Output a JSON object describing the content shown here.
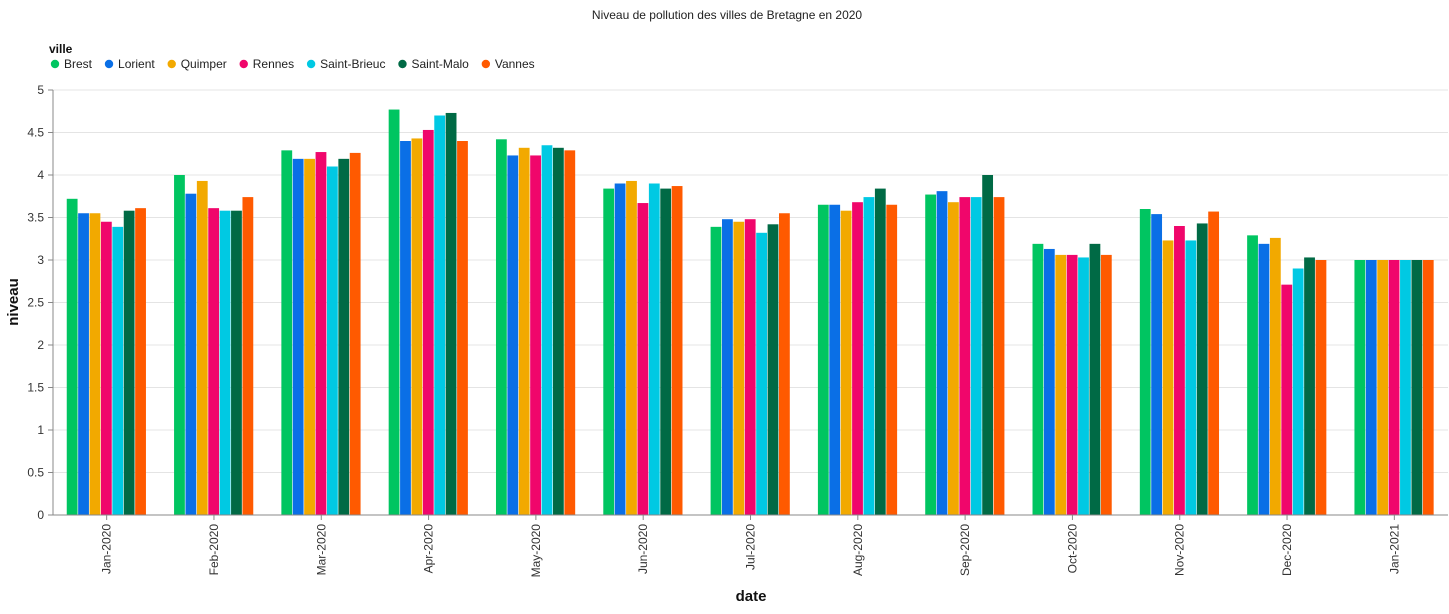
{
  "chart_data": {
    "type": "bar",
    "title": "Niveau de pollution des villes de Bretagne en 2020",
    "xlabel": "date",
    "ylabel": "niveau",
    "ylim": [
      0,
      5
    ],
    "yticks": [
      "0",
      "0.5",
      "1",
      "1.5",
      "2",
      "2.5",
      "3",
      "3.5",
      "4",
      "4.5",
      "5"
    ],
    "grid": true,
    "legend": {
      "title": "ville",
      "placement": "top-left"
    },
    "categories": [
      "Jan-2020",
      "Feb-2020",
      "Mar-2020",
      "Apr-2020",
      "May-2020",
      "Jun-2020",
      "Jul-2020",
      "Aug-2020",
      "Sep-2020",
      "Oct-2020",
      "Nov-2020",
      "Dec-2020",
      "Jan-2021"
    ],
    "series": [
      {
        "name": "Brest",
        "color": "#00c561",
        "values": [
          3.72,
          4.0,
          4.29,
          4.77,
          4.42,
          3.84,
          3.39,
          3.65,
          3.77,
          3.19,
          3.6,
          3.29,
          3.0
        ]
      },
      {
        "name": "Lorient",
        "color": "#0a6fe6",
        "values": [
          3.55,
          3.78,
          4.19,
          4.4,
          4.23,
          3.9,
          3.48,
          3.65,
          3.81,
          3.13,
          3.54,
          3.19,
          3.0
        ]
      },
      {
        "name": "Quimper",
        "color": "#f2a900",
        "values": [
          3.55,
          3.93,
          4.19,
          4.43,
          4.32,
          3.93,
          3.45,
          3.58,
          3.68,
          3.06,
          3.23,
          3.26,
          3.0
        ]
      },
      {
        "name": "Rennes",
        "color": "#f0066b",
        "values": [
          3.45,
          3.61,
          4.27,
          4.53,
          4.23,
          3.67,
          3.48,
          3.68,
          3.74,
          3.06,
          3.4,
          2.71,
          3.0
        ]
      },
      {
        "name": "Saint-Brieuc",
        "color": "#00c9e3",
        "values": [
          3.39,
          3.58,
          4.1,
          4.7,
          4.35,
          3.9,
          3.32,
          3.74,
          3.74,
          3.03,
          3.23,
          2.9,
          3.0
        ]
      },
      {
        "name": "Saint-Malo",
        "color": "#006a45",
        "values": [
          3.58,
          3.58,
          4.19,
          4.73,
          4.32,
          3.84,
          3.42,
          3.84,
          4.0,
          3.19,
          3.43,
          3.03,
          3.0
        ]
      },
      {
        "name": "Vannes",
        "color": "#ff5a00",
        "values": [
          3.61,
          3.74,
          4.26,
          4.4,
          4.29,
          3.87,
          3.55,
          3.65,
          3.74,
          3.06,
          3.57,
          3.0,
          3.0
        ]
      }
    ]
  }
}
